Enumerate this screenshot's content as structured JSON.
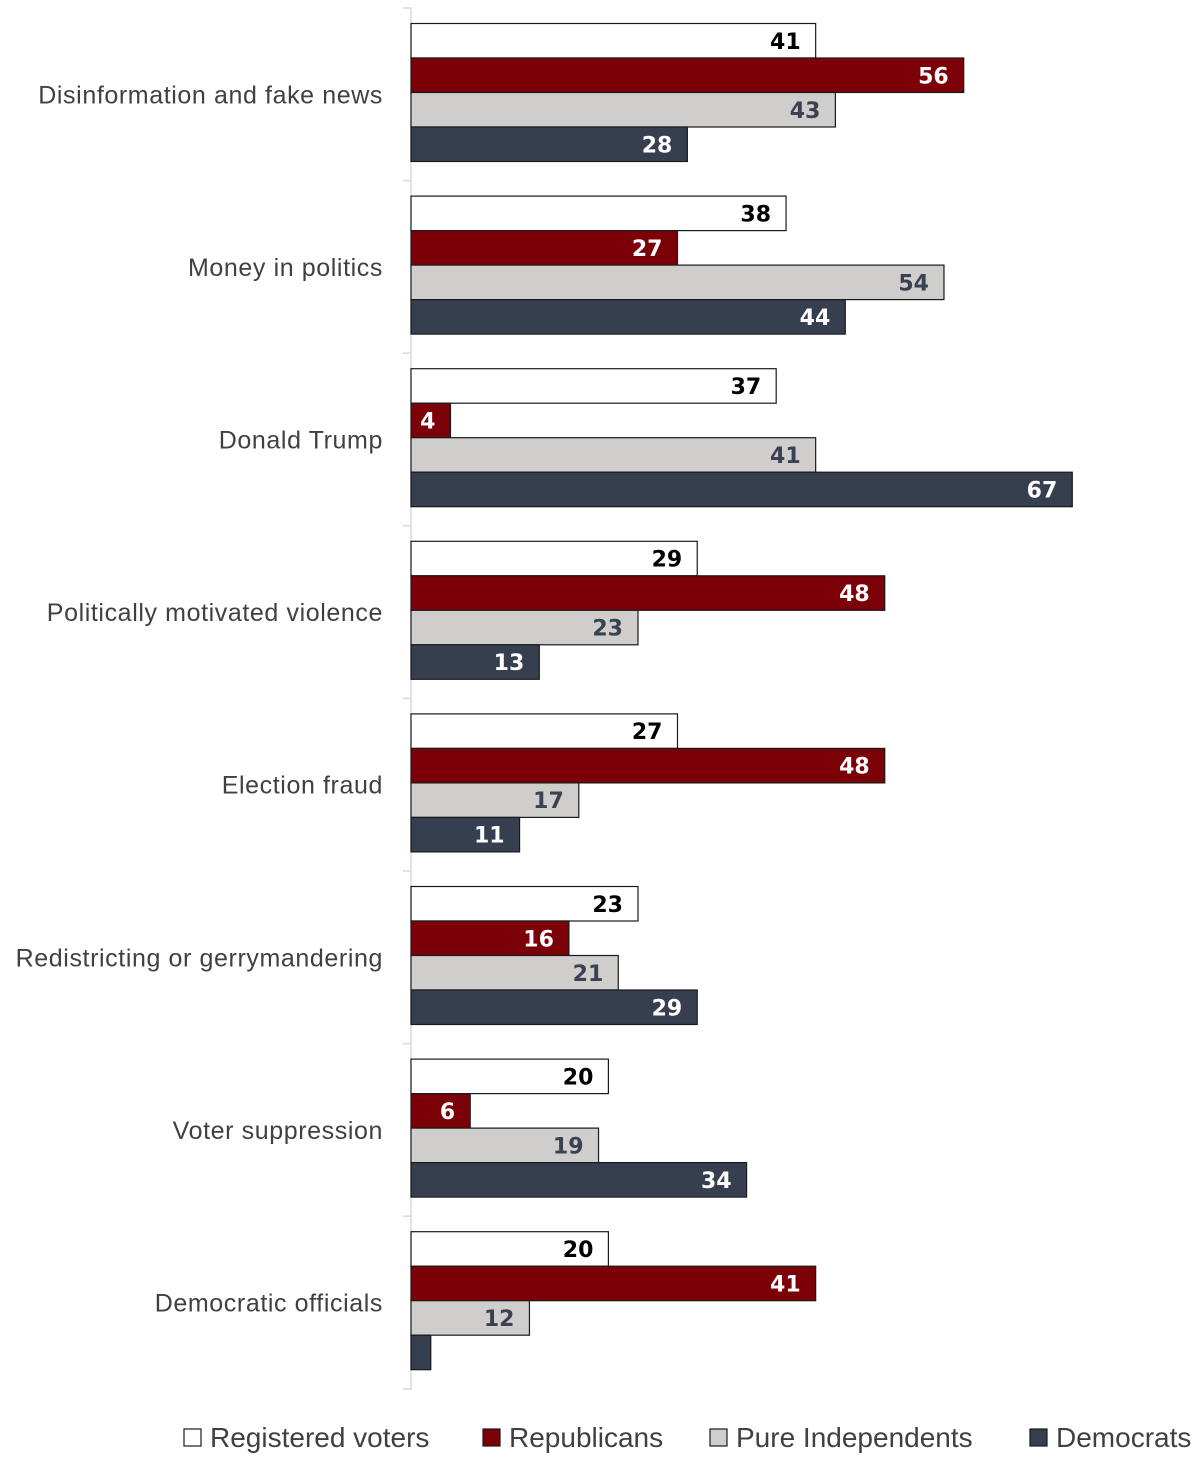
{
  "chart_data": {
    "type": "bar",
    "orientation": "horizontal",
    "categories": [
      "Disinformation and fake news",
      "Money in politics",
      "Donald Trump",
      "Politically motivated violence",
      "Election fraud",
      "Redistricting or gerrymandering",
      "Voter suppression",
      "Democratic officials"
    ],
    "series": [
      {
        "name": "Registered voters",
        "color": "#ffffff",
        "label_color": "#000000",
        "values": [
          41,
          38,
          37,
          29,
          27,
          23,
          20,
          20
        ],
        "labels": [
          "41",
          "38",
          "37",
          "29",
          "27",
          "23",
          "20",
          "20"
        ]
      },
      {
        "name": "Republicans",
        "color": "#7b0008",
        "label_color": "#ffffff",
        "values": [
          56,
          27,
          4,
          48,
          48,
          16,
          6,
          41
        ],
        "labels": [
          "56",
          "27",
          "4",
          "48",
          "48",
          "16",
          "6",
          "41"
        ]
      },
      {
        "name": "Pure Independents",
        "color": "#d0cdcd",
        "label_color": "#3a4150",
        "values": [
          43,
          54,
          41,
          23,
          17,
          21,
          19,
          12
        ],
        "labels": [
          "43",
          "54",
          "41",
          "23",
          "17",
          "21",
          "19",
          "12"
        ]
      },
      {
        "name": "Democrats",
        "color": "#353f50",
        "label_color": "#ffffff",
        "values": [
          28,
          44,
          67,
          13,
          11,
          29,
          34,
          2
        ],
        "labels": [
          "28",
          "44",
          "67",
          "13",
          "11",
          "29",
          "34",
          ""
        ]
      }
    ],
    "xlim": [
      0,
      75
    ],
    "grid": false,
    "legend": "bottom"
  }
}
